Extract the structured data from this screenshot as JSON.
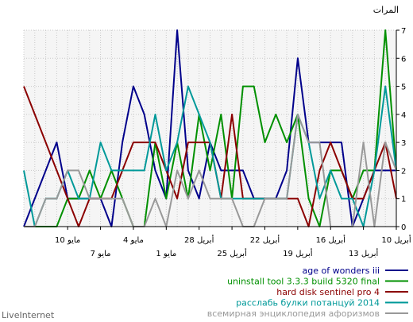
{
  "brand": "LiveInternet",
  "colors": {
    "plot_bg": "#f5f5f5",
    "grid": "#c8c8c8",
    "axis": "#000000"
  },
  "chart_data": {
    "type": "line",
    "ylabel": "المرات",
    "ylim": [
      0,
      7
    ],
    "yticks": [
      0,
      1,
      2,
      3,
      4,
      5,
      6,
      7
    ],
    "x_direction": "right-to-left",
    "x_count": 35,
    "x_ticks_row1": [
      {
        "i": 0,
        "label": "10 أبريل"
      },
      {
        "i": 6,
        "label": "16 أبريل"
      },
      {
        "i": 12,
        "label": "22 أبريل"
      },
      {
        "i": 18,
        "label": "28 أبريل"
      },
      {
        "i": 24,
        "label": "4 مايو"
      },
      {
        "i": 30,
        "label": "10 مايو"
      }
    ],
    "x_ticks_row2": [
      {
        "i": 3,
        "label": "13 أبريل"
      },
      {
        "i": 9,
        "label": "19 أبريل"
      },
      {
        "i": 15,
        "label": "25 أبريل"
      },
      {
        "i": 21,
        "label": "1 مايو"
      },
      {
        "i": 27,
        "label": "7 مايو"
      }
    ],
    "grid": true,
    "legend_position": "bottom-right",
    "series": [
      {
        "name": "age of wonders iii",
        "color": "#00008b",
        "values": [
          2,
          2,
          2,
          1,
          0,
          3,
          3,
          3,
          3,
          6,
          2,
          1,
          1,
          1,
          2,
          2,
          2,
          3,
          1,
          2,
          7,
          1,
          2,
          4,
          5,
          3,
          0,
          1,
          1,
          1,
          1,
          3,
          2,
          1,
          0
        ]
      },
      {
        "name": "uninstall tool 3.3.3 build 5320 final",
        "color": "#009000",
        "values": [
          2,
          7,
          2,
          2,
          1,
          2,
          2,
          0,
          1,
          4,
          3,
          4,
          3,
          5,
          5,
          1,
          4,
          2,
          4,
          1,
          3,
          1,
          3,
          0,
          0,
          1,
          2,
          1,
          2,
          1,
          1,
          0,
          0,
          0,
          0
        ]
      },
      {
        "name": "hard disk sentinel pro 4",
        "color": "#8b0000",
        "values": [
          1,
          3,
          2,
          1,
          1,
          2,
          3,
          2,
          0,
          1,
          1,
          1,
          1,
          1,
          1,
          4,
          1,
          3,
          3,
          3,
          1,
          2,
          3,
          3,
          3,
          2,
          1,
          1,
          1,
          0,
          1,
          2,
          3,
          4,
          5
        ]
      },
      {
        "name": "расслабь булки потанцуй 2014",
        "color": "#009999",
        "values": [
          2,
          5,
          2,
          0,
          1,
          1,
          2,
          1,
          3,
          4,
          1,
          1,
          1,
          1,
          1,
          1,
          1,
          3,
          4,
          5,
          3,
          2,
          4,
          2,
          2,
          2,
          2,
          3,
          1,
          1,
          2,
          1,
          1,
          0,
          2
        ]
      },
      {
        "name": "всемирная энциклопедия афоризмов",
        "color": "#999999",
        "values": [
          2,
          3,
          0,
          3,
          0,
          0,
          0,
          3,
          3,
          4,
          1,
          1,
          1,
          0,
          0,
          1,
          1,
          1,
          2,
          1,
          2,
          0,
          1,
          0,
          0,
          1,
          1,
          1,
          1,
          2,
          2,
          1,
          1,
          0,
          0
        ]
      }
    ]
  }
}
